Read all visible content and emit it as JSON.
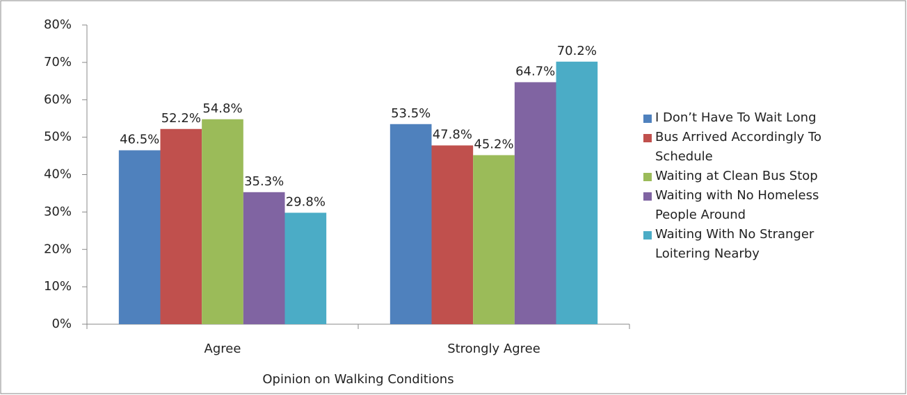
{
  "chart_data": {
    "type": "bar",
    "x_label": "Opinion on Walking Conditions",
    "categories": [
      "Agree",
      "Strongly Agree"
    ],
    "series": [
      {
        "name": "I Don’t Have To Wait Long",
        "color": "#4f81bd",
        "values": [
          46.5,
          53.5
        ],
        "value_labels": [
          "46.5%",
          "53.5%"
        ]
      },
      {
        "name": "Bus Arrived Accordingly To Schedule",
        "color": "#c0504d",
        "values": [
          52.2,
          47.8
        ],
        "value_labels": [
          "52.2%",
          "47.8%"
        ]
      },
      {
        "name": "Waiting at Clean Bus Stop",
        "color": "#9bbb59",
        "values": [
          54.8,
          45.2
        ],
        "value_labels": [
          "54.8%",
          "45.2%"
        ]
      },
      {
        "name": "Waiting with No Homeless People Around",
        "color": "#8064a2",
        "values": [
          35.3,
          64.7
        ],
        "value_labels": [
          "35.3%",
          "64.7%"
        ]
      },
      {
        "name": "Waiting With No Stranger Loitering Nearby",
        "color": "#4bacc6",
        "values": [
          29.8,
          70.2
        ],
        "value_labels": [
          "29.8%",
          "70.2%"
        ]
      }
    ],
    "ylim": [
      0,
      80
    ],
    "yticks": [
      {
        "value": 0,
        "label": "0%"
      },
      {
        "value": 10,
        "label": "10%"
      },
      {
        "value": 20,
        "label": "20%"
      },
      {
        "value": 30,
        "label": "30%"
      },
      {
        "value": 40,
        "label": "40%"
      },
      {
        "value": 50,
        "label": "50%"
      },
      {
        "value": 60,
        "label": "60%"
      },
      {
        "value": 70,
        "label": "70%"
      },
      {
        "value": 80,
        "label": "80%"
      }
    ],
    "legend": "right"
  }
}
